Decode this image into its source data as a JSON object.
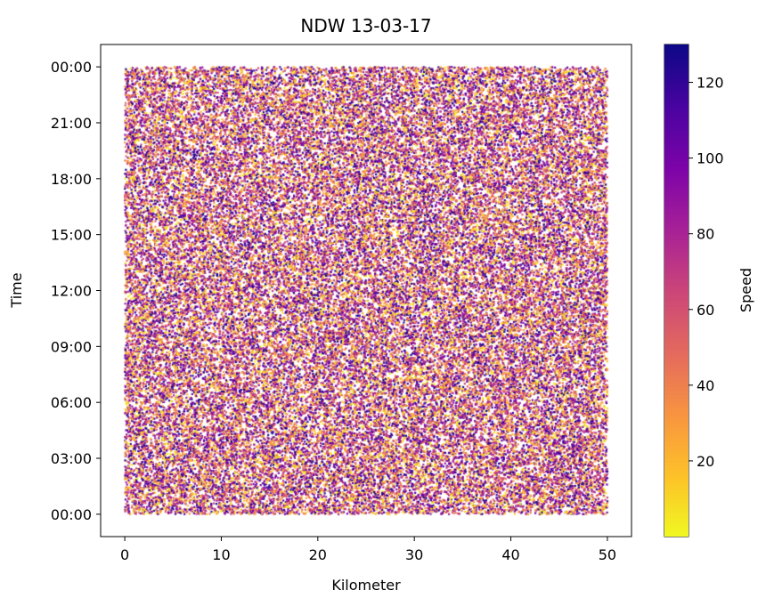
{
  "chart_data": {
    "type": "scatter",
    "title": "NDW 13-03-17",
    "xlabel": "Kilometer",
    "ylabel": "Time",
    "xlim": [
      -2.5,
      52.5
    ],
    "x_ticks": [
      0,
      10,
      20,
      30,
      40,
      50
    ],
    "x_tick_labels": [
      "0",
      "10",
      "20",
      "30",
      "40",
      "50"
    ],
    "x_data_range": [
      0,
      50
    ],
    "y_data_range_hours": [
      0,
      24
    ],
    "ylim_hours": [
      -1.2,
      25.2
    ],
    "y_ticks_hours": [
      0,
      3,
      6,
      9,
      12,
      15,
      18,
      21,
      24
    ],
    "y_tick_labels": [
      "00:00",
      "03:00",
      "06:00",
      "09:00",
      "12:00",
      "15:00",
      "18:00",
      "21:00",
      "00:00"
    ],
    "colorbar": {
      "label": "Speed",
      "colormap": "plasma",
      "range": [
        0,
        130
      ],
      "ticks": [
        20,
        40,
        60,
        80,
        100,
        120
      ],
      "tick_labels": [
        "20",
        "40",
        "60",
        "80",
        "100",
        "120"
      ]
    },
    "grid": false
  }
}
